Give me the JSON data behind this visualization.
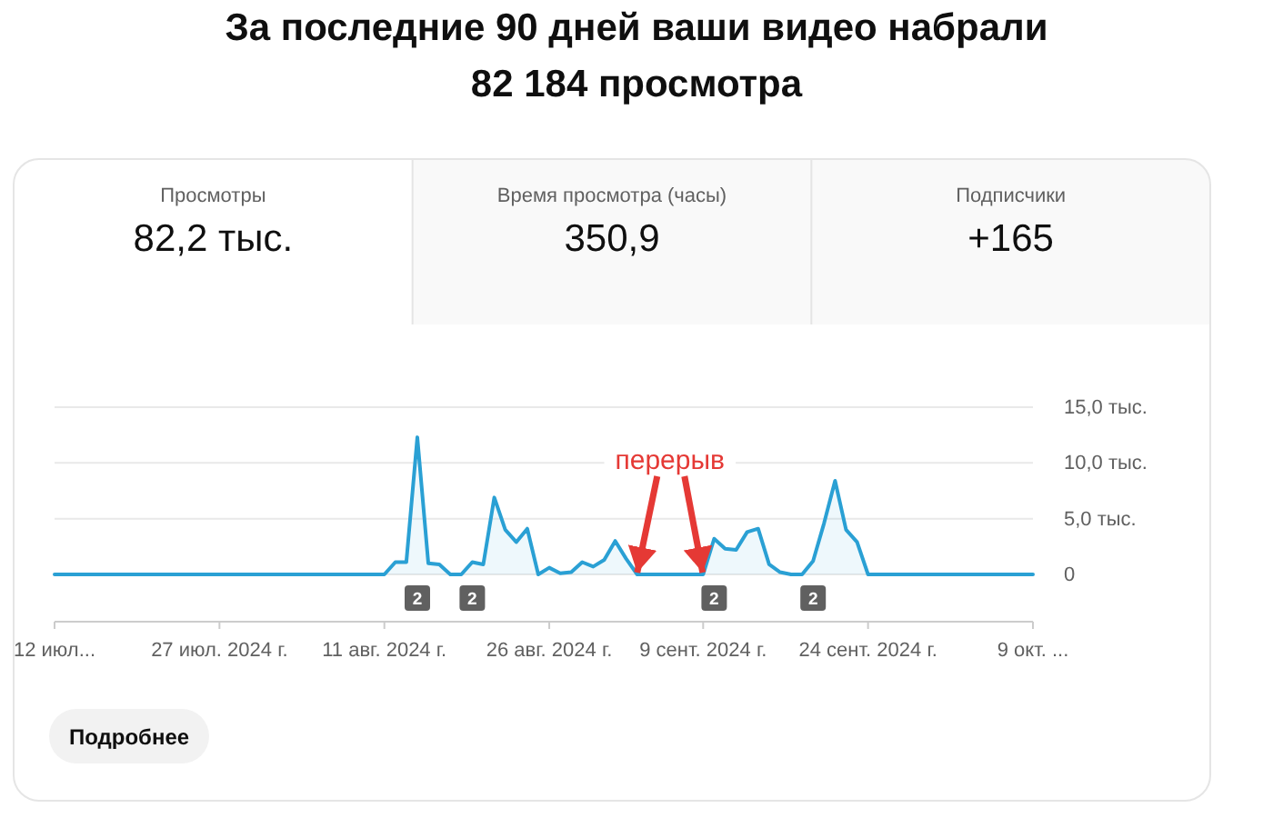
{
  "chart_data": {
    "type": "area",
    "title": "За последние 90 дней ваши видео набрали\n82 184 просмотра",
    "x": [
      "2024-07-12",
      "2024-08-11",
      "2024-08-12",
      "2024-08-13",
      "2024-08-14",
      "2024-08-15",
      "2024-08-16",
      "2024-08-17",
      "2024-08-18",
      "2024-08-19",
      "2024-08-20",
      "2024-08-21",
      "2024-08-22",
      "2024-08-23",
      "2024-08-24",
      "2024-08-25",
      "2024-08-26",
      "2024-08-27",
      "2024-08-28",
      "2024-08-29",
      "2024-08-30",
      "2024-08-31",
      "2024-09-01",
      "2024-09-02",
      "2024-09-03",
      "2024-09-09",
      "2024-09-10",
      "2024-09-11",
      "2024-09-12",
      "2024-09-13",
      "2024-09-14",
      "2024-09-15",
      "2024-09-16",
      "2024-09-17",
      "2024-09-18",
      "2024-09-19",
      "2024-09-20",
      "2024-09-21",
      "2024-09-22",
      "2024-09-23",
      "2024-09-24",
      "2024-10-09"
    ],
    "values": [
      0,
      0,
      1.1,
      1.1,
      12.3,
      1.0,
      0.9,
      0,
      0,
      1.1,
      0.9,
      6.9,
      4.0,
      2.9,
      4.1,
      0,
      0.6,
      0.1,
      0.2,
      1.1,
      0.7,
      1.3,
      3.0,
      1.4,
      0,
      0,
      3.2,
      2.3,
      2.2,
      3.8,
      4.1,
      0.9,
      0.2,
      0,
      0,
      1.2,
      4.6,
      8.4,
      4.0,
      2.9,
      0,
      0
    ],
    "color": "#2aa0d4",
    "xlim": [
      "2024-07-12",
      "2024-10-09"
    ],
    "xticks": [
      {
        "value": "2024-07-12",
        "label": "12 июл..."
      },
      {
        "value": "2024-07-27",
        "label": "27 июл. 2024 г."
      },
      {
        "value": "2024-08-11",
        "label": "11 авг. 2024 г."
      },
      {
        "value": "2024-08-26",
        "label": "26 авг. 2024 г."
      },
      {
        "value": "2024-09-09",
        "label": "9 сент. 2024 г."
      },
      {
        "value": "2024-09-24",
        "label": "24 сент. 2024 г."
      },
      {
        "value": "2024-10-09",
        "label": "9 окт. ..."
      }
    ],
    "ylim": [
      0,
      15
    ],
    "yticks": [
      0,
      {
        "value": 5,
        "label": "5,0 тыс."
      },
      {
        "value": 10,
        "label": "10,0 тыс."
      },
      {
        "value": 15,
        "label": "15,0 тыс."
      }
    ],
    "grid": "y",
    "annotations": [
      "Просмотры",
      "82,2 тыс.",
      "Время просмотра (часы)",
      "350,9",
      "Подписчики",
      "+165",
      "Подробнее",
      {
        "text": "перерыв",
        "x": "2024-09-03",
        "y": 0
      },
      "2",
      "2",
      "2",
      "2"
    ]
  }
}
